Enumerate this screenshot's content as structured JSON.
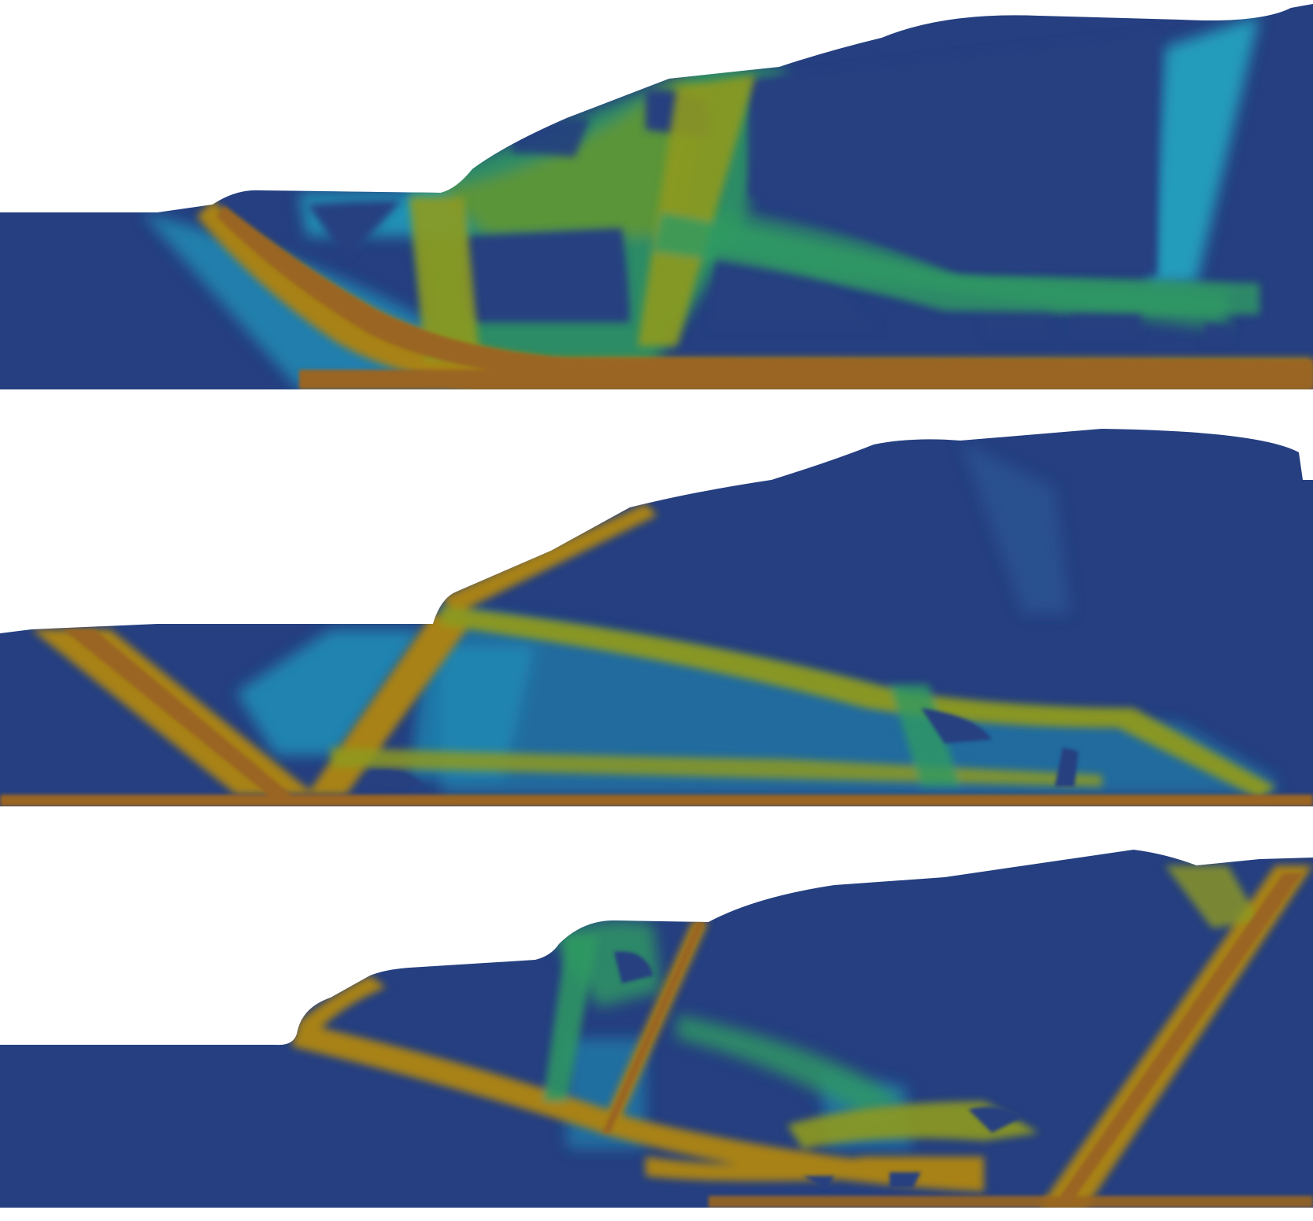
{
  "figure": {
    "panel_count": 3,
    "colors": {
      "background": "#ffffff",
      "base": "#253f80",
      "low": "#1f8fb8",
      "mid_low": "#23a6c2",
      "mid": "#2f9a62",
      "mid_high": "#8e9a1e",
      "high": "#a88214",
      "peak": "#9a6520"
    },
    "panels": [
      {
        "id": "top",
        "description_tag": "field-panel-1"
      },
      {
        "id": "middle",
        "description_tag": "field-panel-2"
      },
      {
        "id": "bottom",
        "description_tag": "field-panel-3"
      }
    ]
  }
}
